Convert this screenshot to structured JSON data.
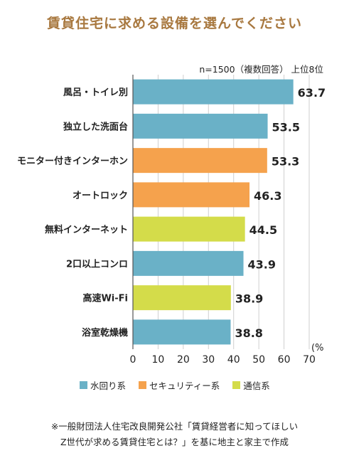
{
  "chart_data": {
    "type": "bar",
    "orientation": "horizontal",
    "title": "賃貸住宅に求める設備を選んでください",
    "note": "n=1500（複数回答） 上位8位",
    "unit": "(%",
    "xlim": [
      0,
      70
    ],
    "xticks": [
      "0",
      "10",
      "20",
      "30",
      "40",
      "50",
      "60",
      "70"
    ],
    "grid": true,
    "categories": [
      "風呂・トイレ別",
      "独立した洗面台",
      "モニター付きインターホン",
      "オートロック",
      "無料インターネット",
      "2口以上コンロ",
      "高速Wi-Fi",
      "浴室乾燥機"
    ],
    "values": [
      63.7,
      53.5,
      53.3,
      46.3,
      44.5,
      43.9,
      38.9,
      38.8
    ],
    "value_labels": [
      "63.7",
      "53.5",
      "53.3",
      "46.3",
      "44.5",
      "43.9",
      "38.9",
      "38.8"
    ],
    "groups": [
      "water",
      "water",
      "security",
      "security",
      "comm",
      "water",
      "comm",
      "water"
    ],
    "legend": [
      {
        "key": "water",
        "label": "水回り系",
        "color": "#6ab1c7"
      },
      {
        "key": "security",
        "label": "セキュリティー系",
        "color": "#f5a24d"
      },
      {
        "key": "comm",
        "label": "通信系",
        "color": "#d4dc4a"
      }
    ],
    "legend_position": "bottom"
  },
  "footnote": {
    "line1": "※一般財団法人住宅改良開発公社「賃貸経営者に知ってほしい",
    "line2": "Z世代が求める賃貸住宅とは？」を基に地主と家主で作成"
  }
}
